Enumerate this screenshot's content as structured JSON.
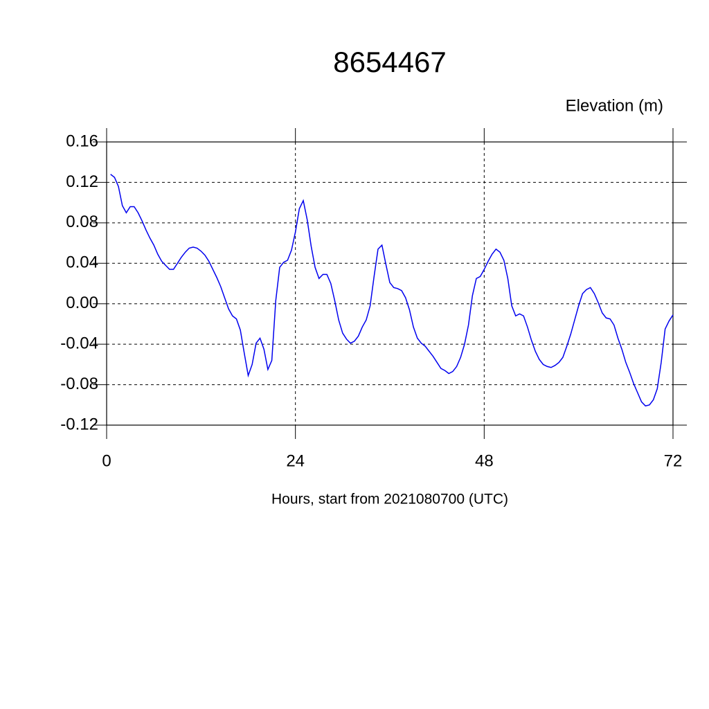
{
  "chart_data": {
    "type": "line",
    "title": "8654467",
    "ylabel": "Elevation (m)",
    "xlabel": "Hours, start from 2021080700 (UTC)",
    "x": [
      0.5,
      1,
      1.5,
      2,
      2.5,
      3,
      3.5,
      4,
      4.5,
      5,
      5.5,
      6,
      6.5,
      7,
      7.5,
      8,
      8.5,
      9,
      9.5,
      10,
      10.5,
      11,
      11.5,
      12,
      12.5,
      13,
      13.5,
      14,
      14.5,
      15,
      15.5,
      16,
      16.5,
      17,
      17.5,
      18,
      18.5,
      19,
      19.5,
      20,
      20.5,
      21,
      21.5,
      22,
      22.5,
      23,
      23.5,
      24,
      24.5,
      25,
      25.5,
      26,
      26.5,
      27,
      27.5,
      28,
      28.5,
      29,
      29.5,
      30,
      30.5,
      31,
      31.5,
      32,
      32.5,
      33,
      33.5,
      34,
      34.5,
      35,
      35.5,
      36,
      36.5,
      37,
      37.5,
      38,
      38.5,
      39,
      39.5,
      40,
      40.5,
      41,
      41.5,
      42,
      42.5,
      43,
      43.5,
      44,
      44.5,
      45,
      45.5,
      46,
      46.5,
      47,
      47.5,
      48,
      48.5,
      49,
      49.5,
      50,
      50.5,
      51,
      51.5,
      52,
      52.5,
      53,
      53.5,
      54,
      54.5,
      55,
      55.5,
      56,
      56.5,
      57,
      57.5,
      58,
      58.5,
      59,
      59.5,
      60,
      60.5,
      61,
      61.5,
      62,
      62.5,
      63,
      63.5,
      64,
      64.5,
      65,
      65.5,
      66,
      66.5,
      67,
      67.5,
      68,
      68.5,
      69,
      69.5,
      70,
      70.5,
      71,
      71.5,
      72
    ],
    "series": [
      {
        "name": "8654467",
        "color": "#0000ee",
        "values": [
          0.128,
          0.125,
          0.116,
          0.097,
          0.09,
          0.096,
          0.096,
          0.09,
          0.082,
          0.073,
          0.065,
          0.058,
          0.049,
          0.042,
          0.038,
          0.034,
          0.034,
          0.04,
          0.046,
          0.051,
          0.055,
          0.056,
          0.055,
          0.052,
          0.048,
          0.042,
          0.034,
          0.026,
          0.017,
          0.006,
          -0.005,
          -0.012,
          -0.015,
          -0.026,
          -0.049,
          -0.071,
          -0.06,
          -0.039,
          -0.034,
          -0.045,
          -0.065,
          -0.056,
          0.003,
          0.036,
          0.041,
          0.043,
          0.053,
          0.071,
          0.094,
          0.102,
          0.083,
          0.057,
          0.036,
          0.025,
          0.029,
          0.029,
          0.02,
          0.003,
          -0.016,
          -0.029,
          -0.035,
          -0.039,
          -0.037,
          -0.032,
          -0.023,
          -0.016,
          -0.002,
          0.027,
          0.054,
          0.058,
          0.039,
          0.021,
          0.016,
          0.015,
          0.013,
          0.006,
          -0.006,
          -0.023,
          -0.034,
          -0.039,
          -0.042,
          -0.047,
          -0.052,
          -0.058,
          -0.064,
          -0.066,
          -0.069,
          -0.067,
          -0.062,
          -0.053,
          -0.04,
          -0.021,
          0.008,
          0.025,
          0.027,
          0.034,
          0.042,
          0.049,
          0.054,
          0.051,
          0.043,
          0.025,
          -0.002,
          -0.012,
          -0.01,
          -0.012,
          -0.023,
          -0.036,
          -0.047,
          -0.055,
          -0.06,
          -0.062,
          -0.063,
          -0.061,
          -0.058,
          -0.053,
          -0.042,
          -0.03,
          -0.016,
          -0.002,
          0.01,
          0.014,
          0.016,
          0.01,
          0.001,
          -0.009,
          -0.014,
          -0.015,
          -0.021,
          -0.034,
          -0.045,
          -0.058,
          -0.068,
          -0.079,
          -0.088,
          -0.097,
          -0.101,
          -0.1,
          -0.095,
          -0.084,
          -0.058,
          -0.025,
          -0.017,
          -0.011
        ]
      }
    ],
    "xlim": [
      0,
      72
    ],
    "xticks": [
      0,
      24,
      48,
      72
    ],
    "ylim": [
      -0.12,
      0.16
    ],
    "yticks": [
      -0.12,
      -0.08,
      -0.04,
      {
        "value": 0,
        "label": "0.00"
      },
      0.04,
      0.08,
      0.12,
      0.16
    ],
    "grid": true
  }
}
